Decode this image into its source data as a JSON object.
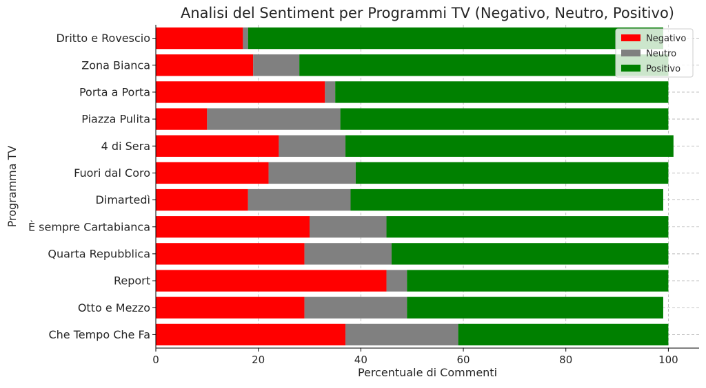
{
  "chart_data": {
    "type": "bar",
    "orientation": "horizontal",
    "stacked": true,
    "title": "Analisi del Sentiment per Programmi TV (Negativo, Neutro, Positivo)",
    "xlabel": "Percentuale di Commenti",
    "ylabel": "Programma TV",
    "xlim": [
      0,
      106
    ],
    "xticks": [
      0,
      20,
      40,
      60,
      80,
      100
    ],
    "grid": true,
    "legend_position": "top-right",
    "categories": [
      "Che Tempo Che Fa",
      "Otto e Mezzo",
      "Report",
      "Quarta Repubblica",
      "È sempre Cartabianca",
      "Dimartedì",
      "Fuori dal Coro",
      "4 di Sera",
      "Piazza Pulita",
      "Porta a Porta",
      "Zona Bianca",
      "Dritto e Rovescio"
    ],
    "series": [
      {
        "name": "Negativo",
        "color": "#ff0000",
        "values": [
          37,
          29,
          45,
          29,
          30,
          18,
          22,
          24,
          10,
          33,
          19,
          17
        ]
      },
      {
        "name": "Neutro",
        "color": "#808080",
        "values": [
          22,
          20,
          4,
          17,
          15,
          20,
          17,
          13,
          26,
          2,
          9,
          1
        ]
      },
      {
        "name": "Positivo",
        "color": "#008000",
        "values": [
          41,
          50,
          51,
          54,
          55,
          61,
          61,
          64,
          64,
          65,
          72,
          81
        ]
      }
    ]
  }
}
